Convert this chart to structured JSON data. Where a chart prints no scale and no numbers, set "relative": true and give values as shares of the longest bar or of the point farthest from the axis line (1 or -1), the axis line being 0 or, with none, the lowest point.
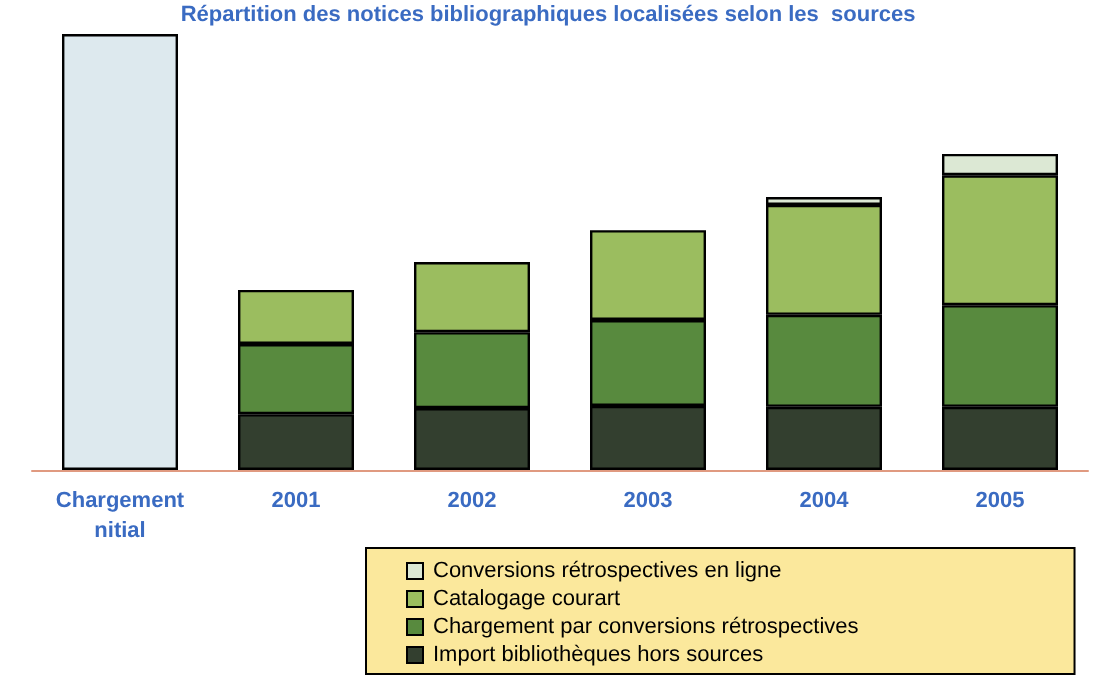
{
  "chart_data": {
    "type": "bar",
    "title": "Répartition des notices bibliographiques localisées selon les  sources",
    "categories": [
      "Chargement\nnitial",
      "2001",
      "2002",
      "2003",
      "2004",
      "2005"
    ],
    "stacked": true,
    "relative": true,
    "legend": "bottom",
    "series": [
      {
        "name": "Import bibliothèques hors sources",
        "color": "#333f2f",
        "values": [
          null,
          0.128,
          0.142,
          0.147,
          0.145,
          0.145
        ]
      },
      {
        "name": "Chargement par conversions rétrospectives",
        "color": "#588a3e",
        "values": [
          null,
          0.161,
          0.174,
          0.197,
          0.211,
          0.233
        ]
      },
      {
        "name": "Catalogage courart",
        "color": "#9bbd5f",
        "values": [
          null,
          0.124,
          0.161,
          0.206,
          0.252,
          0.298
        ]
      },
      {
        "name": "Conversions rétrospectives en ligne",
        "color": "#dce8d4",
        "values": [
          null,
          null,
          null,
          null,
          0.018,
          0.049
        ]
      },
      {
        "color": "#dde9ee",
        "values": [
          1,
          null,
          null,
          null,
          null,
          null
        ]
      }
    ]
  }
}
